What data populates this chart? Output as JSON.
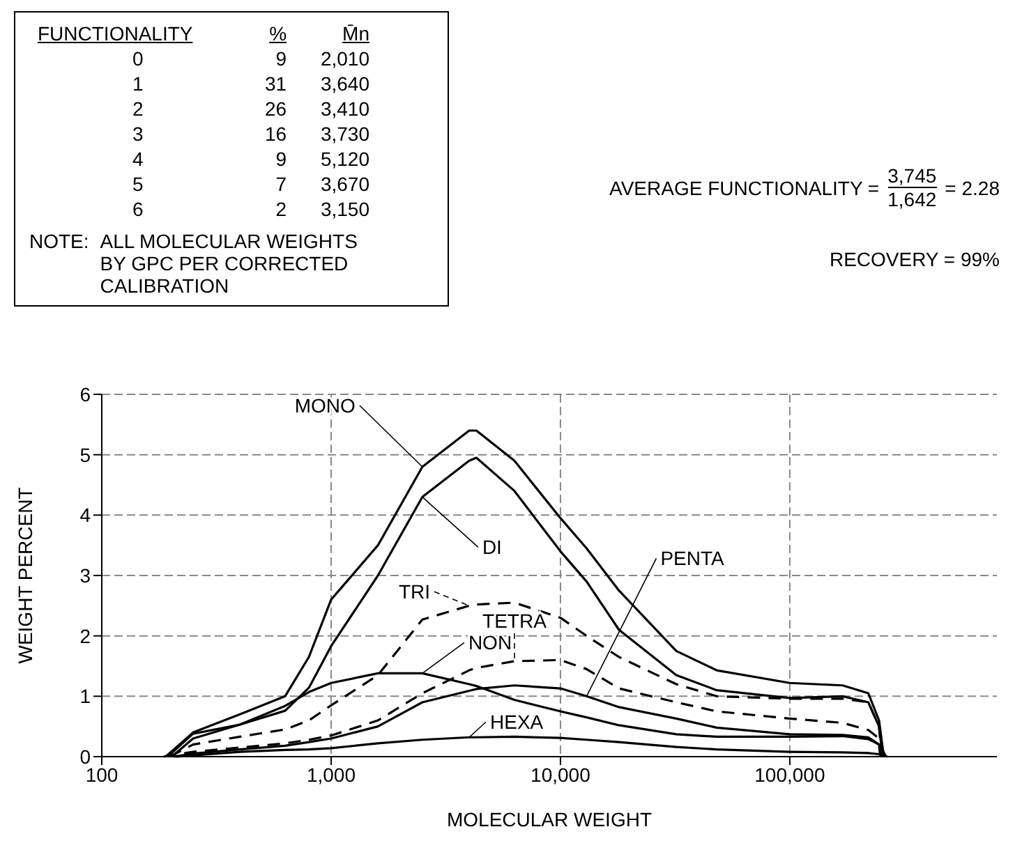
{
  "chart_data": {
    "type": "line",
    "xlabel": "MOLECULAR WEIGHT",
    "ylabel": "WEIGHT PERCENT",
    "log": "x",
    "xlim": [
      100,
      800000
    ],
    "xticks": [
      100,
      {
        "value": 1000,
        "label": "1,000"
      },
      {
        "value": 10000,
        "label": "10,000"
      },
      {
        "value": 100000,
        "label": "100,000"
      }
    ],
    "ylim": [
      0,
      6
    ],
    "yticks": [
      0,
      1,
      2,
      3,
      4,
      5,
      6
    ],
    "grid": true,
    "marker": "none",
    "series": [
      {
        "name": "MONO",
        "color": "#000000",
        "line_style": "solid",
        "x": [
          190,
          250,
          400,
          630,
          800,
          1000,
          1600,
          2500,
          4000,
          4300,
          6300,
          10000,
          13000,
          18000,
          32000,
          48000,
          100000,
          170000,
          220000,
          245000,
          257000
        ],
        "values": [
          0,
          0.4,
          0.7,
          1.0,
          1.65,
          2.6,
          3.5,
          4.8,
          5.4,
          5.4,
          4.9,
          3.95,
          3.45,
          2.75,
          1.75,
          1.43,
          1.22,
          1.18,
          1.05,
          0.6,
          0
        ]
      },
      {
        "name": "DI",
        "color": "#000000",
        "line_style": "solid",
        "x": [
          194,
          250,
          400,
          630,
          800,
          1000,
          1600,
          2500,
          4000,
          4300,
          6300,
          10000,
          13000,
          18000,
          32000,
          48000,
          100000,
          170000,
          220000,
          245000,
          254000
        ],
        "values": [
          0,
          0.38,
          0.53,
          0.76,
          1.14,
          1.83,
          3.0,
          4.3,
          4.9,
          4.95,
          4.4,
          3.4,
          2.9,
          2.1,
          1.35,
          1.1,
          0.97,
          1.0,
          0.9,
          0.5,
          0
        ]
      },
      {
        "name": "TRI",
        "color": "#000000",
        "line_style": "dashed",
        "x": [
          198,
          250,
          400,
          630,
          800,
          1000,
          1600,
          2500,
          4000,
          4300,
          6300,
          10000,
          13000,
          18000,
          32000,
          48000,
          100000,
          170000,
          220000,
          245000,
          251000
        ],
        "values": [
          0,
          0.2,
          0.33,
          0.45,
          0.6,
          0.85,
          1.35,
          2.27,
          2.5,
          2.52,
          2.55,
          2.3,
          2.0,
          1.65,
          1.2,
          1.0,
          0.96,
          0.96,
          0.9,
          0.5,
          0
        ]
      },
      {
        "name": "TETRA",
        "color": "#000000",
        "line_style": "dashed",
        "x": [
          186,
          250,
          400,
          630,
          800,
          1000,
          1600,
          2500,
          4000,
          4300,
          6300,
          10000,
          13000,
          18000,
          32000,
          48000,
          100000,
          170000,
          220000,
          245000,
          260000
        ],
        "values": [
          0,
          0.08,
          0.15,
          0.22,
          0.28,
          0.35,
          0.6,
          1.05,
          1.43,
          1.47,
          1.58,
          1.6,
          1.45,
          1.13,
          0.9,
          0.75,
          0.63,
          0.56,
          0.44,
          0.3,
          0
        ]
      },
      {
        "name": "NON",
        "color": "#000000",
        "line_style": "solid",
        "x": [
          202,
          250,
          400,
          630,
          800,
          1000,
          1600,
          2500,
          4000,
          4300,
          6300,
          10000,
          13000,
          18000,
          32000,
          48000,
          100000,
          170000,
          220000,
          245000,
          263000
        ],
        "values": [
          0,
          0.3,
          0.53,
          0.84,
          1.07,
          1.22,
          1.38,
          1.38,
          1.2,
          1.17,
          0.94,
          0.75,
          0.65,
          0.52,
          0.37,
          0.33,
          0.33,
          0.34,
          0.29,
          0.2,
          0
        ]
      },
      {
        "name": "PENTA",
        "color": "#000000",
        "line_style": "solid",
        "x": [
          206,
          250,
          400,
          630,
          800,
          1000,
          1600,
          2500,
          4000,
          4300,
          6300,
          10000,
          13000,
          18000,
          32000,
          48000,
          100000,
          170000,
          220000,
          245000,
          248000
        ],
        "values": [
          0,
          0.05,
          0.12,
          0.18,
          0.24,
          0.3,
          0.5,
          0.9,
          1.09,
          1.12,
          1.18,
          1.13,
          1.0,
          0.82,
          0.63,
          0.48,
          0.37,
          0.36,
          0.32,
          0.2,
          0
        ]
      },
      {
        "name": "HEXA",
        "color": "#000000",
        "line_style": "solid",
        "x": [
          210,
          250,
          400,
          630,
          800,
          1000,
          1600,
          2500,
          4000,
          4300,
          6300,
          10000,
          13000,
          18000,
          32000,
          48000,
          100000,
          170000,
          220000,
          245000,
          266000
        ],
        "values": [
          0,
          0.02,
          0.08,
          0.11,
          0.12,
          0.14,
          0.22,
          0.28,
          0.32,
          0.32,
          0.33,
          0.31,
          0.28,
          0.24,
          0.16,
          0.12,
          0.08,
          0.07,
          0.06,
          0.04,
          0
        ]
      }
    ],
    "annotations": [
      "FUNCTIONALITY",
      "%",
      "M̄n",
      "0",
      "9",
      "2,010",
      "1",
      "31",
      "3,640",
      "2",
      "26",
      "3,410",
      "3",
      "16",
      "3,730",
      "4",
      "9",
      "5,120",
      "5",
      "7",
      "3,670",
      "6",
      "2",
      "3,150",
      "NOTE:",
      "ALL MOLECULAR WEIGHTS BY GPC PER CORRECTED CALIBRATION",
      "AVERAGE FUNCTIONALITY =",
      "3,745",
      "1,642",
      "= 2.28",
      "RECOVERY = 99%"
    ]
  }
}
